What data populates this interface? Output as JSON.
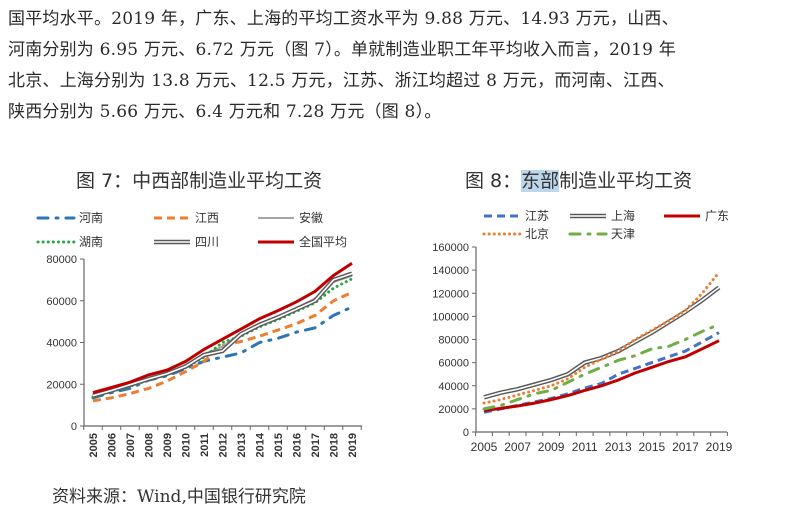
{
  "paragraph": {
    "lines": [
      "国平均水平。2019 年，广东、上海的平均工资水平为 9.88 万元、14.93 万元，山西、",
      "河南分别为 6.95 万元、6.72 万元（图 7）。单就制造业职工年平均收入而言，2019 年",
      "北京、上海分别为 13.8 万元、12.5 万元，江苏、浙江均超过 8 万元，而河南、江西、",
      "陕西分别为 5.66 万元、6.4 万元和 7.28 万元（图 8）。"
    ]
  },
  "source_note": "资料来源：Wind,中国银行研究院",
  "chart_data": [
    {
      "type": "line",
      "title_prefix": "图 7：",
      "title_main": "中西部制造业平均工资",
      "title": "图 7：中西部制造业平均工资",
      "xlabel": "",
      "ylabel": "",
      "x": [
        "2005",
        "2006",
        "2007",
        "2008",
        "2009",
        "2010",
        "2011",
        "2012",
        "2013",
        "2014",
        "2015",
        "2016",
        "2017",
        "2018",
        "2019"
      ],
      "x_tick_labels": [
        "2005",
        "2006",
        "2007",
        "2008",
        "2009",
        "2010",
        "2011",
        "2012",
        "2013",
        "2014",
        "2015",
        "2016",
        "2017",
        "2018",
        "2019"
      ],
      "x_tick_rotation": "vertical",
      "ylim": [
        0,
        80000
      ],
      "y_ticks": [
        0,
        20000,
        40000,
        60000,
        80000
      ],
      "y_tick_labels": [
        "0",
        "20000",
        "40000",
        "60000",
        "80000"
      ],
      "grid": false,
      "legend_position": "top",
      "series": [
        {
          "name": "河南",
          "color": "#2e75b6",
          "style": "dash-dot",
          "values": [
            13500,
            16000,
            18000,
            22000,
            24000,
            27500,
            31000,
            33000,
            35000,
            40000,
            42000,
            45000,
            47000,
            53000,
            57000
          ]
        },
        {
          "name": "江西",
          "color": "#ed7d31",
          "style": "dash",
          "values": [
            12000,
            13500,
            15500,
            18000,
            21500,
            26000,
            31000,
            38500,
            40500,
            43000,
            46000,
            49000,
            53000,
            60000,
            64000
          ]
        },
        {
          "name": "安徽",
          "color": "#a5a5a5",
          "style": "solid",
          "values": [
            15000,
            17500,
            20000,
            23000,
            25500,
            29000,
            34500,
            38000,
            44500,
            49000,
            52500,
            56500,
            61000,
            69000,
            72000
          ]
        },
        {
          "name": "湖南",
          "color": "#27a844",
          "style": "dot",
          "values": [
            14000,
            16500,
            19000,
            22000,
            24500,
            28000,
            33000,
            40000,
            43000,
            47500,
            51000,
            55000,
            59000,
            66000,
            70500
          ]
        },
        {
          "name": "四川",
          "color": "#595959",
          "style": "double",
          "values": [
            14500,
            17000,
            19800,
            22500,
            25000,
            28500,
            34000,
            36000,
            44000,
            48500,
            52000,
            56000,
            60000,
            70000,
            73000
          ]
        },
        {
          "name": "全国平均",
          "color": "#c00000",
          "style": "solid-thick",
          "values": [
            16000,
            18500,
            21000,
            24500,
            26800,
            30900,
            36700,
            41600,
            46400,
            51400,
            55300,
            59500,
            64500,
            72100,
            78000
          ]
        }
      ]
    },
    {
      "type": "line",
      "title_prefix": "图 8：",
      "title_highlight": "东部",
      "title_main": "制造业平均工资",
      "title": "图 8：东部制造业平均工资",
      "xlabel": "",
      "ylabel": "",
      "x": [
        "2005",
        "2006",
        "2007",
        "2008",
        "2009",
        "2010",
        "2011",
        "2012",
        "2013",
        "2014",
        "2015",
        "2016",
        "2017",
        "2018",
        "2019"
      ],
      "x_tick_labels": [
        "2005",
        "",
        "2007",
        "",
        "2009",
        "",
        "2011",
        "",
        "2013",
        "",
        "2015",
        "",
        "2017",
        "",
        "2019"
      ],
      "ylim": [
        0,
        160000
      ],
      "y_ticks": [
        0,
        20000,
        40000,
        60000,
        80000,
        100000,
        120000,
        140000,
        160000
      ],
      "y_tick_labels": [
        "0",
        "20000",
        "40000",
        "60000",
        "80000",
        "100000",
        "120000",
        "140000",
        "160000"
      ],
      "grid": false,
      "legend_position": "top",
      "series": [
        {
          "name": "江苏",
          "color": "#4472c4",
          "style": "dash",
          "values": [
            17000,
            20000,
            23000,
            26000,
            29000,
            33000,
            38000,
            42000,
            50000,
            55000,
            60000,
            65000,
            70000,
            78000,
            86000
          ]
        },
        {
          "name": "上海",
          "color": "#595959",
          "style": "double",
          "values": [
            30000,
            34000,
            37000,
            41000,
            45000,
            50000,
            60000,
            64000,
            70000,
            78000,
            86000,
            95000,
            104000,
            114000,
            125000
          ]
        },
        {
          "name": "广东",
          "color": "#c00000",
          "style": "solid-thick",
          "values": [
            18500,
            20500,
            22500,
            25000,
            28000,
            31500,
            36000,
            40000,
            45000,
            51000,
            56000,
            61000,
            65000,
            72000,
            79000
          ]
        },
        {
          "name": "北京",
          "color": "#ed7d31",
          "style": "dot",
          "values": [
            25000,
            28000,
            32000,
            36000,
            40000,
            46000,
            56000,
            63000,
            70000,
            80000,
            88000,
            96000,
            105000,
            120000,
            138000
          ]
        },
        {
          "name": "天津",
          "color": "#70ad47",
          "style": "dash-dot",
          "values": [
            20000,
            23000,
            28000,
            33000,
            36000,
            43000,
            50000,
            56000,
            62000,
            66000,
            72000,
            74000,
            80000,
            87000,
            93000
          ]
        }
      ]
    }
  ]
}
